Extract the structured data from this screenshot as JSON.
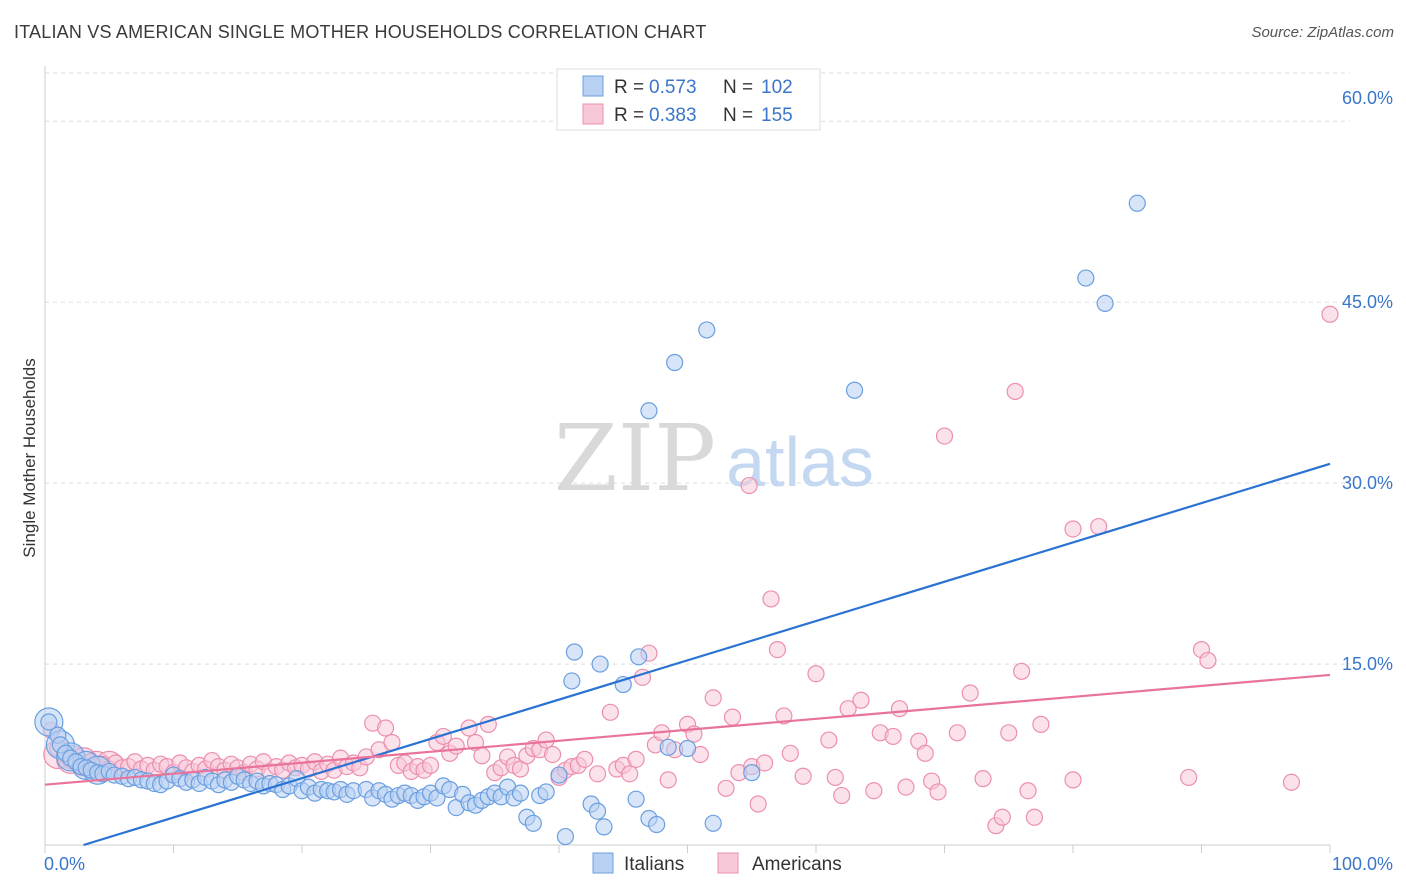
{
  "header": {
    "title": "ITALIAN VS AMERICAN SINGLE MOTHER HOUSEHOLDS CORRELATION CHART",
    "source": "Source: ZipAtlas.com"
  },
  "watermark": {
    "zip": "ZIP",
    "atlas": "atlas"
  },
  "colors": {
    "italians": "#6a9fe0",
    "italians_fill": "#b8d0f2",
    "americans": "#ec8fae",
    "americans_fill": "#f7c9d8",
    "italians_line": "#2b73d2",
    "americans_line": "#e8739b",
    "tick_text": "#3a76c9",
    "grid": "#dddddd"
  },
  "chart_data": {
    "type": "scatter",
    "xlabel": "",
    "ylabel": "Single Mother Households",
    "xlim": [
      0,
      100
    ],
    "ylim": [
      0,
      64
    ],
    "x_tick_labels": [
      {
        "value": 0,
        "label": "0.0%"
      },
      {
        "value": 100,
        "label": "100.0%"
      }
    ],
    "y_ticks": [
      {
        "value": 15,
        "label": "15.0%"
      },
      {
        "value": 30,
        "label": "30.0%"
      },
      {
        "value": 45,
        "label": "45.0%"
      },
      {
        "value": 60,
        "label": "60.0%"
      }
    ],
    "grid": true,
    "legend_top": [
      {
        "series": "Italians",
        "r_label": "R = ",
        "r_value": "0.573",
        "n_label": "N = ",
        "n_value": "102"
      },
      {
        "series": "Americans",
        "r_label": "R = ",
        "r_value": "0.383",
        "n_label": "N = ",
        "n_value": "155"
      }
    ],
    "legend_bottom": [
      "Italians",
      "Americans"
    ],
    "series": [
      {
        "name": "Italians",
        "trend": {
          "x": [
            3,
            100
          ],
          "y": [
            0,
            31.6
          ]
        },
        "points": [
          [
            0.3,
            10.2
          ],
          [
            1,
            9.1
          ],
          [
            1.2,
            8.3
          ],
          [
            1.6,
            7.6
          ],
          [
            2,
            7.2
          ],
          [
            2.4,
            6.9
          ],
          [
            2.8,
            6.5
          ],
          [
            3.2,
            6.4
          ],
          [
            3.6,
            6.2
          ],
          [
            4.1,
            6
          ],
          [
            4.5,
            5.9
          ],
          [
            5,
            6.1
          ],
          [
            5.4,
            5.8
          ],
          [
            6,
            5.7
          ],
          [
            6.5,
            5.5
          ],
          [
            7,
            5.6
          ],
          [
            7.5,
            5.4
          ],
          [
            8,
            5.3
          ],
          [
            8.5,
            5.1
          ],
          [
            9,
            5
          ],
          [
            9.5,
            5.3
          ],
          [
            10,
            5.8
          ],
          [
            10.5,
            5.5
          ],
          [
            11,
            5.2
          ],
          [
            11.5,
            5.4
          ],
          [
            12,
            5.1
          ],
          [
            12.5,
            5.6
          ],
          [
            13,
            5.3
          ],
          [
            13.5,
            5
          ],
          [
            14,
            5.4
          ],
          [
            14.5,
            5.2
          ],
          [
            15,
            5.7
          ],
          [
            15.5,
            5.4
          ],
          [
            16,
            5.1
          ],
          [
            16.5,
            5.3
          ],
          [
            17,
            4.9
          ],
          [
            17.5,
            5.1
          ],
          [
            18,
            5
          ],
          [
            18.5,
            4.6
          ],
          [
            19,
            4.9
          ],
          [
            19.6,
            5.5
          ],
          [
            20,
            4.5
          ],
          [
            20.5,
            4.8
          ],
          [
            21,
            4.3
          ],
          [
            21.5,
            4.6
          ],
          [
            22,
            4.5
          ],
          [
            22.5,
            4.4
          ],
          [
            23,
            4.6
          ],
          [
            23.5,
            4.2
          ],
          [
            24,
            4.5
          ],
          [
            25,
            4.6
          ],
          [
            25.5,
            3.9
          ],
          [
            26,
            4.5
          ],
          [
            26.5,
            4.2
          ],
          [
            27,
            3.8
          ],
          [
            27.5,
            4.1
          ],
          [
            28,
            4.3
          ],
          [
            28.5,
            4.1
          ],
          [
            29,
            3.7
          ],
          [
            29.5,
            4
          ],
          [
            30,
            4.3
          ],
          [
            30.5,
            3.9
          ],
          [
            31,
            4.9
          ],
          [
            31.5,
            4.6
          ],
          [
            32,
            3.1
          ],
          [
            32.5,
            4.2
          ],
          [
            33,
            3.5
          ],
          [
            33.5,
            3.3
          ],
          [
            34,
            3.7
          ],
          [
            34.5,
            4
          ],
          [
            35,
            4.3
          ],
          [
            35.5,
            4
          ],
          [
            36,
            4.8
          ],
          [
            36.5,
            3.9
          ],
          [
            37,
            4.3
          ],
          [
            37.5,
            2.3
          ],
          [
            38,
            1.8
          ],
          [
            38.5,
            4.1
          ],
          [
            39,
            4.4
          ],
          [
            40,
            5.8
          ],
          [
            40.5,
            0.7
          ],
          [
            41.2,
            16
          ],
          [
            41,
            13.6
          ],
          [
            42.5,
            3.4
          ],
          [
            43,
            2.8
          ],
          [
            43.5,
            1.5
          ],
          [
            43.2,
            15
          ],
          [
            45,
            13.3
          ],
          [
            46,
            3.8
          ],
          [
            46.2,
            15.6
          ],
          [
            47,
            2.2
          ],
          [
            47.6,
            1.7
          ],
          [
            48.5,
            8.1
          ],
          [
            50,
            8
          ],
          [
            52,
            1.8
          ],
          [
            55,
            6
          ],
          [
            47,
            36
          ],
          [
            49,
            40
          ],
          [
            51.5,
            42.7
          ],
          [
            63,
            37.7
          ],
          [
            81,
            47
          ],
          [
            82.5,
            44.9
          ],
          [
            85,
            53.2
          ]
        ],
        "big_points": [
          [
            0.3,
            10.2
          ],
          [
            1.2,
            8.3
          ],
          [
            2,
            7.3
          ],
          [
            3.2,
            6.6
          ],
          [
            4.1,
            6.2
          ]
        ]
      },
      {
        "name": "Americans",
        "trend": {
          "x": [
            0,
            100
          ],
          "y": [
            5,
            14.1
          ]
        },
        "points": [
          [
            0.5,
            9.5
          ],
          [
            1,
            8
          ],
          [
            1.5,
            7.5
          ],
          [
            2,
            7
          ],
          [
            2.5,
            6.8
          ],
          [
            3,
            6.6
          ],
          [
            3.5,
            6.9
          ],
          [
            4,
            6.5
          ],
          [
            4.5,
            6.7
          ],
          [
            5,
            6.3
          ],
          [
            5.5,
            6.8
          ],
          [
            6,
            6.4
          ],
          [
            6.5,
            6.5
          ],
          [
            7,
            6.9
          ],
          [
            7.5,
            6.3
          ],
          [
            8,
            6.6
          ],
          [
            8.5,
            6.2
          ],
          [
            9,
            6.7
          ],
          [
            9.5,
            6.5
          ],
          [
            10,
            6
          ],
          [
            10.5,
            6.8
          ],
          [
            11,
            6.4
          ],
          [
            11.5,
            6.1
          ],
          [
            12,
            6.6
          ],
          [
            12.5,
            6.3
          ],
          [
            13,
            7
          ],
          [
            13.5,
            6.5
          ],
          [
            14,
            6.2
          ],
          [
            14.5,
            6.7
          ],
          [
            15,
            6.4
          ],
          [
            15.5,
            6
          ],
          [
            16,
            6.7
          ],
          [
            16.5,
            6.3
          ],
          [
            17,
            6.9
          ],
          [
            17.5,
            6.1
          ],
          [
            18,
            6.5
          ],
          [
            18.5,
            6.2
          ],
          [
            19,
            6.8
          ],
          [
            19.5,
            6.4
          ],
          [
            20,
            6.6
          ],
          [
            20.5,
            6.3
          ],
          [
            21,
            6.9
          ],
          [
            21.5,
            6.1
          ],
          [
            22,
            6.7
          ],
          [
            22.5,
            6.2
          ],
          [
            23,
            7.2
          ],
          [
            23.5,
            6.5
          ],
          [
            24,
            6.8
          ],
          [
            24.5,
            6.4
          ],
          [
            25,
            7.3
          ],
          [
            25.5,
            10.1
          ],
          [
            26,
            7.9
          ],
          [
            26.5,
            9.7
          ],
          [
            27,
            8.5
          ],
          [
            27.5,
            6.6
          ],
          [
            28,
            6.8
          ],
          [
            28.5,
            6.1
          ],
          [
            29,
            6.5
          ],
          [
            29.5,
            6.2
          ],
          [
            30,
            6.6
          ],
          [
            30.5,
            8.5
          ],
          [
            31,
            9
          ],
          [
            31.5,
            7.6
          ],
          [
            32,
            8.2
          ],
          [
            33,
            9.7
          ],
          [
            33.5,
            8.5
          ],
          [
            34,
            7.4
          ],
          [
            34.5,
            10
          ],
          [
            35,
            6
          ],
          [
            35.5,
            6.4
          ],
          [
            36,
            7.3
          ],
          [
            36.5,
            6.6
          ],
          [
            37,
            6.3
          ],
          [
            37.5,
            7.4
          ],
          [
            38,
            8
          ],
          [
            38.5,
            7.9
          ],
          [
            39,
            8.7
          ],
          [
            39.5,
            7.5
          ],
          [
            40,
            5.6
          ],
          [
            40.5,
            6.2
          ],
          [
            41,
            6.5
          ],
          [
            41.5,
            6.6
          ],
          [
            42,
            7.1
          ],
          [
            43,
            5.9
          ],
          [
            44,
            11
          ],
          [
            44.5,
            6.3
          ],
          [
            45,
            6.6
          ],
          [
            45.5,
            5.9
          ],
          [
            46,
            7.1
          ],
          [
            46.5,
            13.9
          ],
          [
            47,
            15.9
          ],
          [
            47.5,
            8.3
          ],
          [
            48,
            9.3
          ],
          [
            48.5,
            5.4
          ],
          [
            49,
            7.9
          ],
          [
            50,
            10
          ],
          [
            50.5,
            9.2
          ],
          [
            51,
            7.5
          ],
          [
            52,
            12.2
          ],
          [
            53,
            4.7
          ],
          [
            53.5,
            10.6
          ],
          [
            54,
            6
          ],
          [
            55,
            6.5
          ],
          [
            55.5,
            3.4
          ],
          [
            56,
            6.8
          ],
          [
            57,
            16.2
          ],
          [
            57.5,
            10.7
          ],
          [
            58,
            7.6
          ],
          [
            59,
            5.7
          ],
          [
            60,
            14.2
          ],
          [
            61,
            8.7
          ],
          [
            61.5,
            5.6
          ],
          [
            62,
            4.1
          ],
          [
            62.5,
            11.3
          ],
          [
            63.5,
            12
          ],
          [
            64.5,
            4.5
          ],
          [
            65,
            9.3
          ],
          [
            66,
            9
          ],
          [
            66.5,
            11.3
          ],
          [
            67,
            4.8
          ],
          [
            68,
            8.6
          ],
          [
            68.5,
            7.6
          ],
          [
            69,
            5.3
          ],
          [
            69.5,
            4.4
          ],
          [
            71,
            9.3
          ],
          [
            72,
            12.6
          ],
          [
            73,
            5.5
          ],
          [
            74,
            1.6
          ],
          [
            74.5,
            2.3
          ],
          [
            75,
            9.3
          ],
          [
            76,
            14.4
          ],
          [
            76.5,
            4.5
          ],
          [
            77,
            2.3
          ],
          [
            77.5,
            10
          ],
          [
            80,
            5.4
          ],
          [
            89,
            5.6
          ],
          [
            90,
            16.2
          ],
          [
            90.5,
            15.3
          ],
          [
            97,
            5.2
          ],
          [
            56.5,
            20.4
          ],
          [
            54.8,
            29.8
          ],
          [
            70,
            33.9
          ],
          [
            75.5,
            37.6
          ],
          [
            80,
            26.2
          ],
          [
            82,
            26.4
          ],
          [
            100,
            44
          ]
        ],
        "big_points": [
          [
            1,
            7.5
          ],
          [
            2,
            7.1
          ],
          [
            3,
            6.9
          ],
          [
            4,
            6.6
          ],
          [
            5,
            6.6
          ]
        ]
      }
    ]
  }
}
